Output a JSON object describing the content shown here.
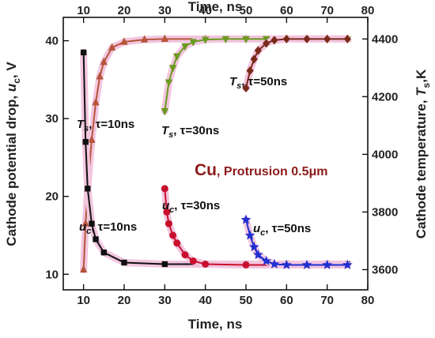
{
  "chart_data": {
    "type": "line",
    "title": "",
    "x_bottom": {
      "label": "Time, ns",
      "range": [
        5,
        80
      ],
      "ticks": [
        10,
        20,
        30,
        40,
        50,
        60,
        70,
        80
      ]
    },
    "x_top": {
      "label": "Time, ns",
      "range": [
        5,
        80
      ],
      "ticks": [
        10,
        20,
        30,
        40,
        50,
        60,
        70,
        80
      ]
    },
    "y_left": {
      "label_parts": [
        "Cathode potential drop,  ",
        "u",
        "c",
        ", V"
      ],
      "range": [
        8,
        43
      ],
      "ticks": [
        10,
        20,
        30,
        40
      ]
    },
    "y_right": {
      "label_parts": [
        "Cathode temperature, ",
        "T",
        "s",
        ",K"
      ],
      "range": [
        3530,
        4475
      ],
      "ticks": [
        3600,
        3800,
        4000,
        4200,
        4400
      ]
    },
    "series": [
      {
        "axis": "right",
        "color": "#b5553a",
        "marker": "triangle-up",
        "label": {
          "sym": "T",
          "sub": "s",
          "rest": ", τ=10ns"
        },
        "points": [
          [
            10,
            3600
          ],
          [
            10.5,
            3760
          ],
          [
            11,
            3880
          ],
          [
            12,
            4050
          ],
          [
            13,
            4180
          ],
          [
            14,
            4270
          ],
          [
            15,
            4320
          ],
          [
            17,
            4370
          ],
          [
            20,
            4390
          ],
          [
            25,
            4398
          ],
          [
            30,
            4400
          ],
          [
            40,
            4400
          ],
          [
            50,
            4400
          ],
          [
            60,
            4400
          ],
          [
            70,
            4400
          ],
          [
            75,
            4400
          ]
        ]
      },
      {
        "axis": "right",
        "color": "#6a9a1f",
        "marker": "triangle-down",
        "label": {
          "sym": "T",
          "sub": "s",
          "rest": ", τ=30ns"
        },
        "points": [
          [
            30,
            4150
          ],
          [
            31,
            4250
          ],
          [
            32,
            4300
          ],
          [
            33,
            4340
          ],
          [
            35,
            4375
          ],
          [
            37,
            4390
          ],
          [
            40,
            4398
          ],
          [
            45,
            4400
          ],
          [
            50,
            4400
          ],
          [
            55,
            4400
          ],
          [
            60,
            4400
          ],
          [
            70,
            4400
          ],
          [
            75,
            4400
          ]
        ]
      },
      {
        "axis": "right",
        "color": "#7a2a1a",
        "marker": "diamond",
        "label": {
          "sym": "T",
          "sub": "s",
          "rest": ", τ=50ns"
        },
        "points": [
          [
            50,
            4230
          ],
          [
            51,
            4290
          ],
          [
            52,
            4330
          ],
          [
            53,
            4360
          ],
          [
            55,
            4385
          ],
          [
            57,
            4396
          ],
          [
            60,
            4400
          ],
          [
            65,
            4400
          ],
          [
            70,
            4400
          ],
          [
            75,
            4400
          ]
        ]
      },
      {
        "axis": "left",
        "color": "#111111",
        "marker": "square",
        "label": {
          "sym": "u",
          "sub": "c",
          "rest": ", τ=10ns"
        },
        "points": [
          [
            10,
            38.5
          ],
          [
            10.5,
            27
          ],
          [
            11,
            21
          ],
          [
            12,
            16.5
          ],
          [
            13,
            14.5
          ],
          [
            15,
            12.8
          ],
          [
            20,
            11.5
          ],
          [
            30,
            11.3
          ],
          [
            40,
            11.3
          ],
          [
            50,
            11.3
          ],
          [
            60,
            11.3
          ],
          [
            70,
            11.3
          ],
          [
            75,
            11.3
          ]
        ]
      },
      {
        "axis": "left",
        "color": "#c8102e",
        "marker": "circle",
        "label": {
          "sym": "u",
          "sub": "c",
          "rest": ", τ=30ns"
        },
        "points": [
          [
            30,
            21
          ],
          [
            30.5,
            18
          ],
          [
            31,
            16.5
          ],
          [
            32,
            15
          ],
          [
            33,
            14
          ],
          [
            35,
            12.5
          ],
          [
            37,
            11.7
          ],
          [
            40,
            11.3
          ],
          [
            50,
            11.2
          ],
          [
            60,
            11.2
          ],
          [
            70,
            11.2
          ],
          [
            75,
            11.2
          ]
        ]
      },
      {
        "axis": "left",
        "color": "#1f2fd0",
        "marker": "star",
        "label": {
          "sym": "u",
          "sub": "c",
          "rest": ", τ=50ns"
        },
        "points": [
          [
            50,
            17
          ],
          [
            51,
            15
          ],
          [
            52,
            13.5
          ],
          [
            53,
            12.5
          ],
          [
            55,
            11.7
          ],
          [
            57,
            11.3
          ],
          [
            60,
            11.2
          ],
          [
            65,
            11.2
          ],
          [
            70,
            11.2
          ],
          [
            75,
            11.2
          ]
        ]
      }
    ],
    "annotations": [
      {
        "text": "Cu",
        "small": ", Protrusion 0.5μm"
      }
    ],
    "grid": false,
    "legend": "none"
  }
}
